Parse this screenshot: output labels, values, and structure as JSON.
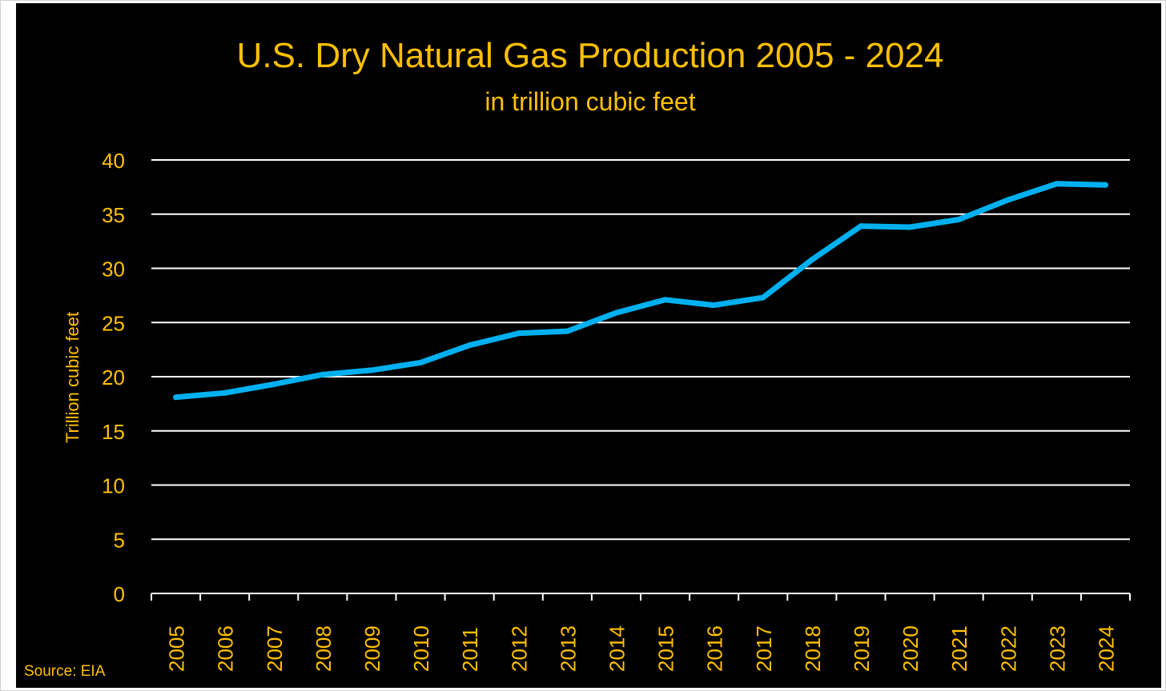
{
  "chart_data": {
    "type": "line",
    "title": "U.S. Dry Natural Gas Production 2005 - 2024",
    "subtitle": "in trillion cubic feet",
    "ylabel": "Trillion cubic feet",
    "xlabel": "",
    "source": "Source: EIA",
    "categories": [
      "2005",
      "2006",
      "2007",
      "2008",
      "2009",
      "2010",
      "2011",
      "2012",
      "2013",
      "2014",
      "2015",
      "2016",
      "2017",
      "2018",
      "2019",
      "2020",
      "2021",
      "2022",
      "2023",
      "2024"
    ],
    "series": [
      {
        "values": [
          18.1,
          18.5,
          19.3,
          20.2,
          20.6,
          21.3,
          22.9,
          24.0,
          24.2,
          25.9,
          27.1,
          26.6,
          27.3,
          30.8,
          33.9,
          33.8,
          34.5,
          36.3,
          37.8,
          37.7
        ]
      }
    ],
    "ylim": [
      0,
      40
    ],
    "yticks": [
      0,
      5,
      10,
      15,
      20,
      25,
      30,
      35,
      40
    ],
    "grid": true,
    "colors": {
      "background": "#000000",
      "text": "#FFC000",
      "line": "#00B0F0",
      "grid": "#FFFFFF",
      "axis": "#FFFFFF"
    }
  }
}
